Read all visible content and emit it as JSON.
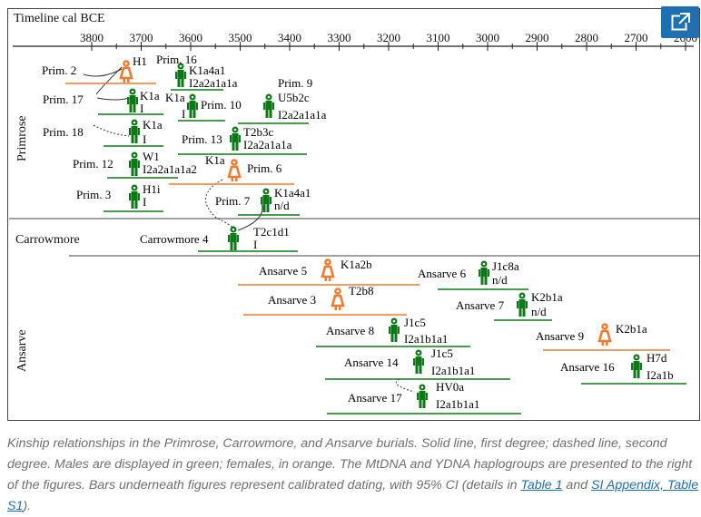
{
  "figure": {
    "timeline_title": "Timeline cal BCE",
    "ticks": [
      "3800",
      "3700",
      "3600",
      "3500",
      "3400",
      "3300",
      "3200",
      "3100",
      "3000",
      "2900",
      "2800",
      "2700",
      "2600"
    ],
    "sites": [
      "Primrose",
      "Carrowmore",
      "Ansarve"
    ],
    "individuals": [
      {
        "name": "Prim. 2",
        "sex": "female",
        "haplo_mt": "H1",
        "haplo_y": ""
      },
      {
        "name": "Prim. 16",
        "sex": "male",
        "haplo_mt": "K1a4a1",
        "haplo_y": "I2a2a1a1a"
      },
      {
        "name": "Prim. 9",
        "sex": "male",
        "haplo_mt": "U5b2c",
        "haplo_y": "I2a2a1a1a"
      },
      {
        "name": "Prim. 17",
        "sex": "male",
        "haplo_mt": "K1a",
        "haplo_y": "I"
      },
      {
        "name": "Prim. 10",
        "sex": "male",
        "haplo_mt": "K1a",
        "haplo_y": "I"
      },
      {
        "name": "Prim. 18",
        "sex": "male",
        "haplo_mt": "K1a",
        "haplo_y": "I"
      },
      {
        "name": "Prim. 13",
        "sex": "male",
        "haplo_mt": "T2b3c",
        "haplo_y": "I2a2a1a1a"
      },
      {
        "name": "Prim. 12",
        "sex": "male",
        "haplo_mt": "W1",
        "haplo_y": "I2a2a1a1a2"
      },
      {
        "name": "Prim. 6",
        "sex": "female",
        "haplo_mt": "K1a",
        "haplo_y": ""
      },
      {
        "name": "Prim. 3",
        "sex": "male",
        "haplo_mt": "H1i",
        "haplo_y": "I"
      },
      {
        "name": "Prim. 7",
        "sex": "male",
        "haplo_mt": "K1a4a1",
        "haplo_y": "n/d"
      },
      {
        "name": "Carrowmore 4",
        "sex": "male",
        "haplo_mt": "T2c1d1",
        "haplo_y": "I"
      },
      {
        "name": "Ansarve 5",
        "sex": "female",
        "haplo_mt": "K1a2b",
        "haplo_y": ""
      },
      {
        "name": "Ansarve 6",
        "sex": "male",
        "haplo_mt": "J1c8a",
        "haplo_y": "n/d"
      },
      {
        "name": "Ansarve 3",
        "sex": "female",
        "haplo_mt": "T2b8",
        "haplo_y": ""
      },
      {
        "name": "Ansarve 7",
        "sex": "male",
        "haplo_mt": "K2b1a",
        "haplo_y": "n/d"
      },
      {
        "name": "Ansarve 8",
        "sex": "male",
        "haplo_mt": "J1c5",
        "haplo_y": "I2a1b1a1"
      },
      {
        "name": "Ansarve 9",
        "sex": "female",
        "haplo_mt": "K2b1a",
        "haplo_y": ""
      },
      {
        "name": "Ansarve 14",
        "sex": "male",
        "haplo_mt": "J1c5",
        "haplo_y": "I2a1b1a1"
      },
      {
        "name": "Ansarve 16",
        "sex": "male",
        "haplo_mt": "H7d",
        "haplo_y": "I2a1b"
      },
      {
        "name": "Ansarve 17",
        "sex": "male",
        "haplo_mt": "HV0a",
        "haplo_y": "I2a1b1a1"
      }
    ]
  },
  "caption": {
    "text": "Kinship relationships in the Primrose, Carrowmore, and Ansarve burials. Solid line, first degree; dashed line, second degree. Males are displayed in green; females, in orange. The MtDNA and YDNA haplogroups are presented to the right of the figures. Bars underneath figures represent calibrated dating, with 95% CI (details in ",
    "link1": "Table 1",
    "and": " and ",
    "link2": "SI Appendix, Table S1",
    "end": ")."
  },
  "colors": {
    "male": "#0b7a16",
    "female": "#f07a30",
    "button": "#1f6fb3"
  },
  "icons": {
    "expand": "open-in-new-icon"
  }
}
